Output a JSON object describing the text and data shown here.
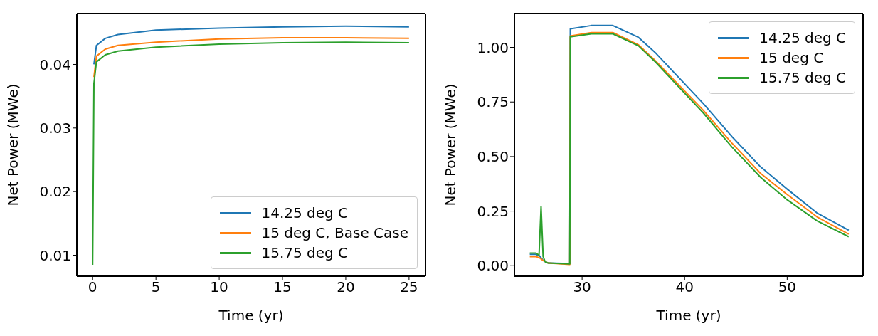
{
  "chart_data": [
    {
      "type": "line",
      "xlabel": "Time (yr)",
      "ylabel": "Net Power (MWe)",
      "xlim": [
        -1.25,
        26.3
      ],
      "ylim": [
        0.0067,
        0.048
      ],
      "xticks": [
        0,
        5,
        10,
        15,
        20,
        25
      ],
      "yticks": [
        0.01,
        0.02,
        0.03,
        0.04
      ],
      "grid": false,
      "legend": "bottom right",
      "series": [
        {
          "name": "14.25 deg C",
          "color": "#1f77b4",
          "x": [
            0.1,
            0.3,
            1,
            2,
            5,
            10,
            15,
            20,
            25
          ],
          "values": [
            0.04,
            0.043,
            0.0441,
            0.0447,
            0.0454,
            0.0457,
            0.0459,
            0.046,
            0.0459
          ]
        },
        {
          "name": "15 deg C, Base Case",
          "color": "#ff7f0e",
          "x": [
            0.1,
            0.3,
            1,
            2,
            5,
            10,
            15,
            20,
            25
          ],
          "values": [
            0.038,
            0.0413,
            0.0424,
            0.043,
            0.0435,
            0.044,
            0.0442,
            0.0442,
            0.0441
          ]
        },
        {
          "name": "15.75 deg C",
          "color": "#2ca02c",
          "x": [
            0,
            0.1,
            0.3,
            1,
            2,
            5,
            10,
            15,
            20,
            25
          ],
          "values": [
            0.0085,
            0.037,
            0.0404,
            0.0415,
            0.0421,
            0.0427,
            0.0432,
            0.0434,
            0.0435,
            0.0434
          ]
        }
      ]
    },
    {
      "type": "line",
      "xlabel": "Time (yr)",
      "ylabel": "Net Power (MWe)",
      "xlim": [
        23.4,
        57.4
      ],
      "ylim": [
        -0.048,
        1.155
      ],
      "xticks": [
        30,
        40,
        50
      ],
      "yticks": [
        {
          "value": 0,
          "label": "0.00"
        },
        {
          "value": 0.25,
          "label": "0.25"
        },
        {
          "value": 0.5,
          "label": "0.50"
        },
        {
          "value": 0.75,
          "label": "0.75"
        },
        {
          "value": 1,
          "label": "1.00"
        }
      ],
      "grid": false,
      "legend": "top right",
      "series": [
        {
          "name": "14.25 deg C",
          "color": "#1f77b4",
          "x": [
            24.9,
            25.5,
            25.85,
            26.2,
            26.7,
            28.8,
            28.85,
            30.9,
            33,
            35.5,
            37.2,
            39,
            41.8,
            44.6,
            47.4,
            50,
            52.9,
            56
          ],
          "values": [
            0.052,
            0.052,
            0.045,
            0.024,
            0.012,
            0.01,
            1.085,
            1.1,
            1.1,
            1.046,
            0.973,
            0.883,
            0.744,
            0.592,
            0.453,
            0.351,
            0.242,
            0.163
          ]
        },
        {
          "name": "15 deg C",
          "color": "#ff7f0e",
          "x": [
            24.9,
            25.5,
            25.85,
            26.2,
            26.7,
            28.8,
            28.85,
            30.9,
            33,
            35.5,
            37.2,
            39,
            41.8,
            44.6,
            47.4,
            50,
            52.9,
            56
          ],
          "values": [
            0.042,
            0.042,
            0.036,
            0.024,
            0.012,
            0.006,
            1.052,
            1.068,
            1.068,
            1.012,
            0.937,
            0.849,
            0.713,
            0.562,
            0.423,
            0.326,
            0.224,
            0.145
          ]
        },
        {
          "name": "15.75 deg C",
          "color": "#2ca02c",
          "x": [
            24.9,
            25.5,
            25.8,
            26.0,
            26.2,
            26.4,
            26.7,
            28.8,
            28.85,
            30.9,
            33,
            35.5,
            37.2,
            39,
            41.8,
            44.6,
            47.4,
            50,
            52.9,
            56
          ],
          "values": [
            0.058,
            0.058,
            0.048,
            0.272,
            0.042,
            0.018,
            0.012,
            0.008,
            1.048,
            1.062,
            1.062,
            1.007,
            0.931,
            0.84,
            0.701,
            0.544,
            0.405,
            0.302,
            0.206,
            0.133
          ]
        }
      ]
    }
  ]
}
